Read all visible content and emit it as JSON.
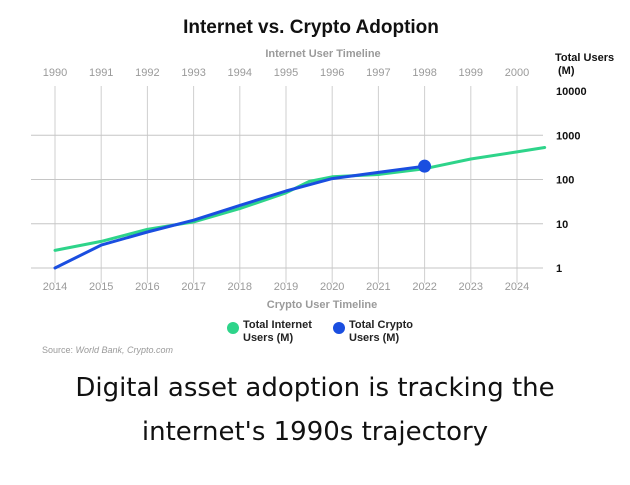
{
  "chart_data": {
    "type": "line",
    "title": "Internet vs. Crypto Adoption",
    "top_axis_label": "Internet User Timeline",
    "bottom_axis_label": "Crypto User Timeline",
    "ylabel_lines": [
      "Total Users",
      "(M)"
    ],
    "top_x_ticks": [
      "1990",
      "1991",
      "1992",
      "1993",
      "1994",
      "1995",
      "1996",
      "1997",
      "1998",
      "1999",
      "2000"
    ],
    "bottom_x_ticks": [
      "2014",
      "2015",
      "2016",
      "2017",
      "2018",
      "2019",
      "2020",
      "2021",
      "2022",
      "2023",
      "2024"
    ],
    "xlim": [
      2014,
      2024.6
    ],
    "y_scale": "log",
    "ylim": [
      1,
      10000
    ],
    "y_ticks": [
      1,
      10,
      100,
      1000,
      10000
    ],
    "y_tick_labels": [
      "1",
      "10",
      "100",
      "1000",
      "10000"
    ],
    "grid": true,
    "legend_position": "bottom-center",
    "series": [
      {
        "name_lines": [
          "Total Internet",
          "Users (M)"
        ],
        "color": "#2ed48a",
        "x": [
          2014,
          2015,
          2016,
          2017,
          2018,
          2019,
          2019.5,
          2020,
          2021,
          2022,
          2023,
          2024,
          2024.6
        ],
        "y": [
          2.5,
          4,
          7.5,
          11,
          22,
          50,
          90,
          115,
          130,
          175,
          290,
          420,
          530
        ]
      },
      {
        "name_lines": [
          "Total Crypto",
          "Users (M)"
        ],
        "color": "#1a4ee0",
        "x": [
          2014,
          2015,
          2016,
          2017,
          2018,
          2019,
          2020,
          2021,
          2022
        ],
        "y": [
          1,
          3.3,
          6.5,
          12,
          26,
          55,
          105,
          145,
          200
        ],
        "endpoint_marker": true
      }
    ],
    "source_prefix": "Source: ",
    "source_italic": "World Bank, Crypto.com"
  },
  "caption_lines": [
    "Digital asset adoption is tracking the",
    "internet's 1990s trajectory"
  ]
}
